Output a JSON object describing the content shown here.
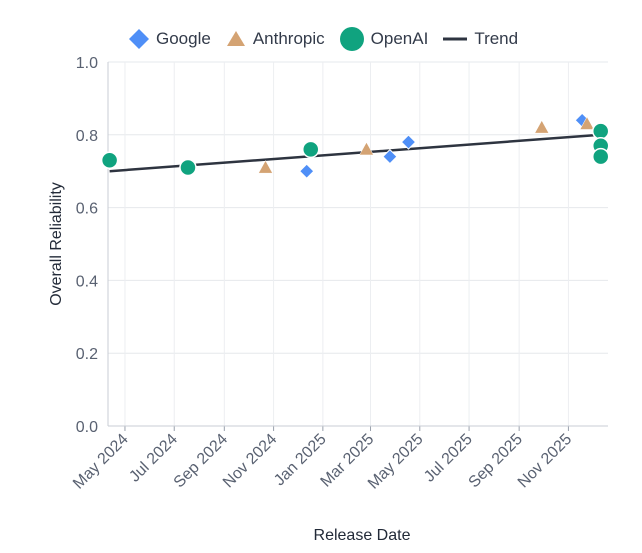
{
  "chart_data": {
    "type": "scatter",
    "title": "",
    "xlabel": "Release Date",
    "ylabel": "Overall Reliability",
    "ylim": [
      0,
      1.0
    ],
    "xlim": [
      "2024-04-10",
      "2025-12-20"
    ],
    "yticks": [
      "0.0",
      "0.2",
      "0.4",
      "0.6",
      "0.8",
      "1.0"
    ],
    "xticks": [
      {
        "date": "2024-05-01",
        "label": "May 2024"
      },
      {
        "date": "2024-07-01",
        "label": "Jul 2024"
      },
      {
        "date": "2024-09-01",
        "label": "Sep 2024"
      },
      {
        "date": "2024-11-01",
        "label": "Nov 2024"
      },
      {
        "date": "2025-01-01",
        "label": "Jan 2025"
      },
      {
        "date": "2025-03-01",
        "label": "Mar 2025"
      },
      {
        "date": "2025-05-01",
        "label": "May 2025"
      },
      {
        "date": "2025-07-01",
        "label": "Jul 2025"
      },
      {
        "date": "2025-09-01",
        "label": "Sep 2025"
      },
      {
        "date": "2025-11-01",
        "label": "Nov 2025"
      }
    ],
    "grid": true,
    "legend_position": "top",
    "series": [
      {
        "name": "Google",
        "marker": "diamond",
        "color": "#4f8ff7",
        "points": [
          {
            "x": "2024-12-12",
            "y": 0.7
          },
          {
            "x": "2025-03-25",
            "y": 0.74
          },
          {
            "x": "2025-04-17",
            "y": 0.78
          },
          {
            "x": "2025-11-18",
            "y": 0.84
          }
        ]
      },
      {
        "name": "Anthropic",
        "marker": "triangle",
        "color": "#d4a373",
        "points": [
          {
            "x": "2024-10-22",
            "y": 0.71
          },
          {
            "x": "2025-02-24",
            "y": 0.76
          },
          {
            "x": "2025-09-29",
            "y": 0.82
          },
          {
            "x": "2025-11-24",
            "y": 0.83
          }
        ]
      },
      {
        "name": "OpenAI",
        "marker": "circle",
        "color": "#10a37f",
        "points": [
          {
            "x": "2024-04-12",
            "y": 0.73
          },
          {
            "x": "2024-07-18",
            "y": 0.71
          },
          {
            "x": "2024-12-17",
            "y": 0.76
          },
          {
            "x": "2025-12-11",
            "y": 0.81
          },
          {
            "x": "2025-12-11",
            "y": 0.77
          },
          {
            "x": "2025-12-11",
            "y": 0.74
          }
        ]
      }
    ],
    "trend": {
      "name": "Trend",
      "color": "#2e3440",
      "start": {
        "x": "2024-04-12",
        "y": 0.7
      },
      "end": {
        "x": "2025-12-11",
        "y": 0.8
      }
    }
  }
}
